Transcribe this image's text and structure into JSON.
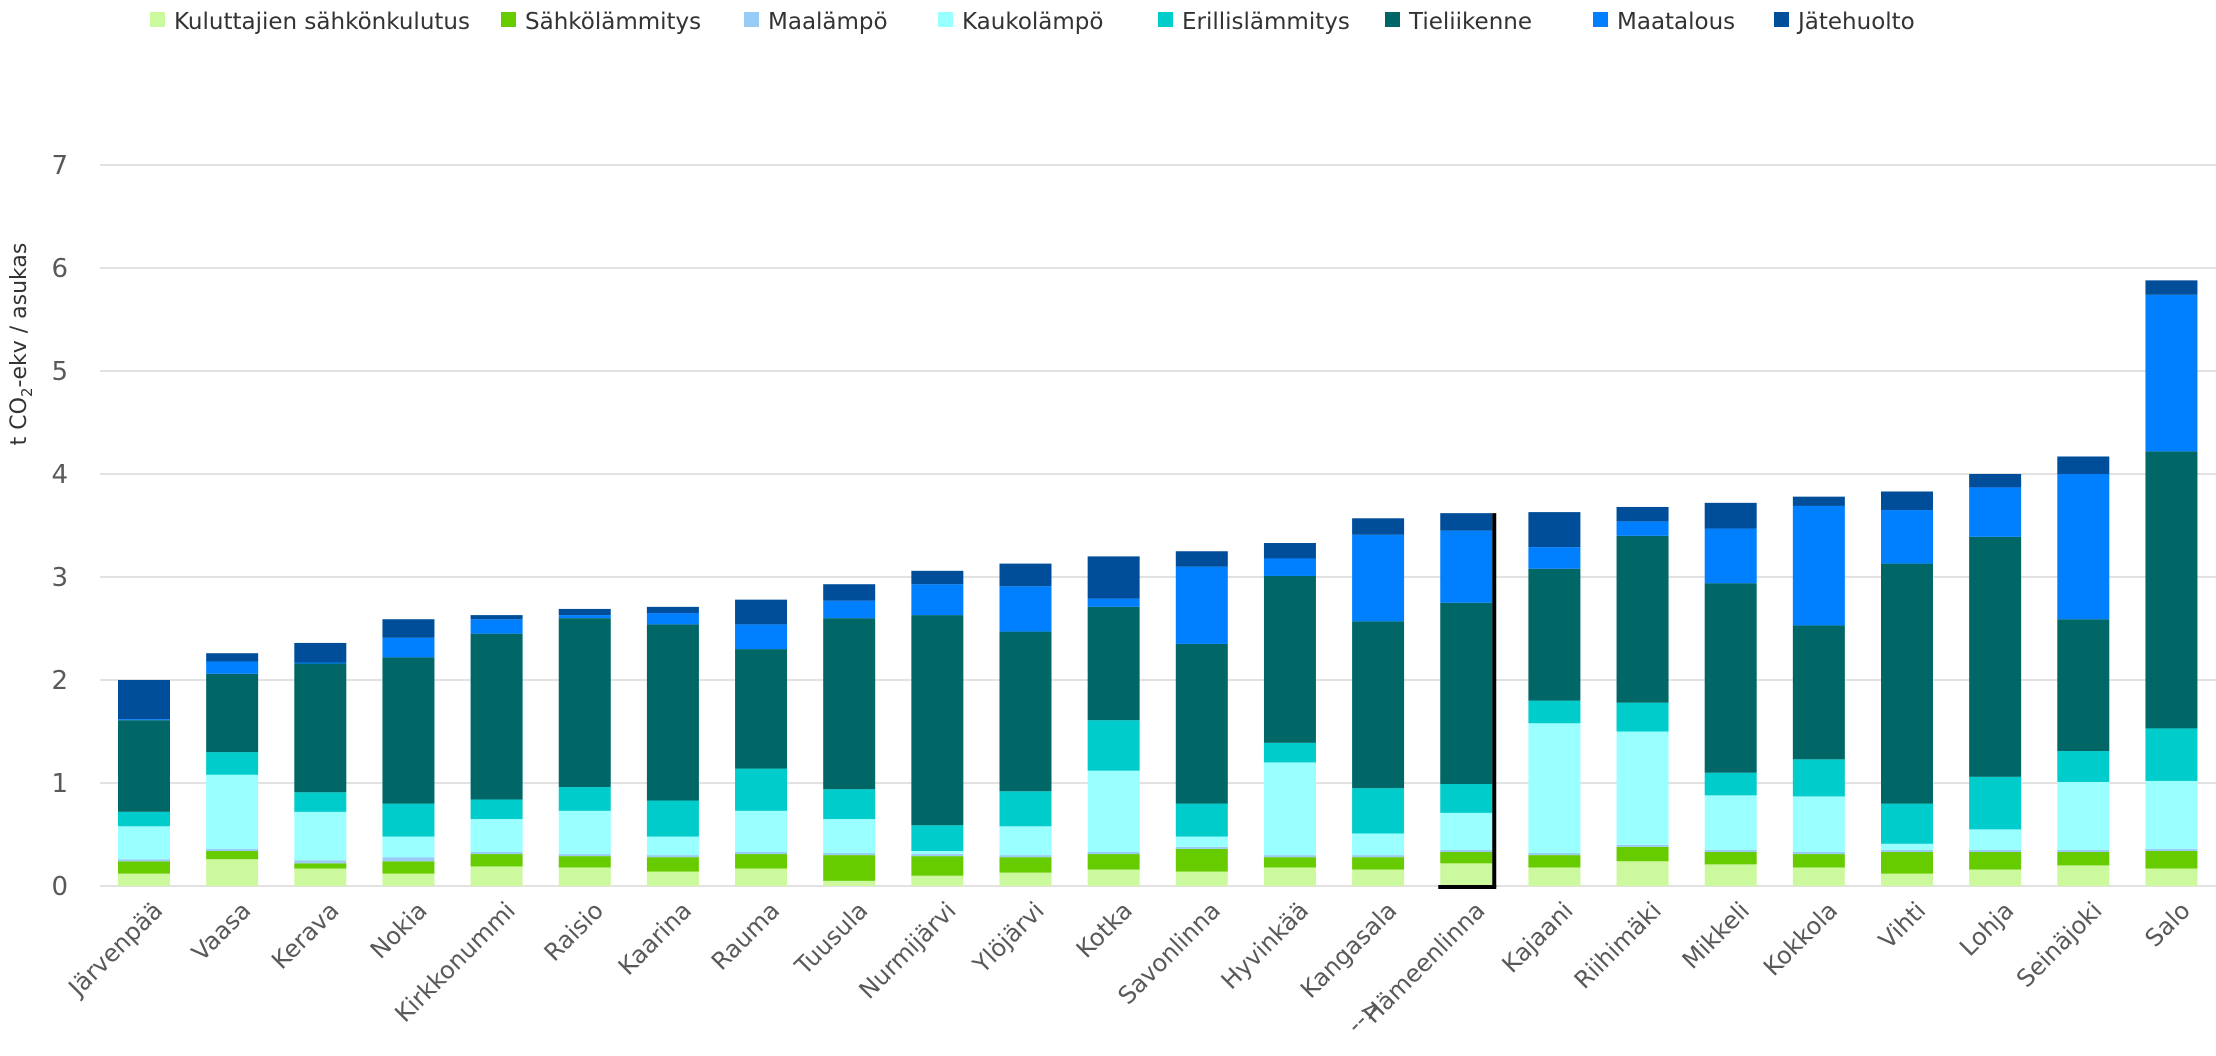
{
  "colors": {
    "grid": "#d9d9d9",
    "axis_text": "#595959",
    "highlight": "#000000"
  },
  "chart_data": {
    "type": "stacked-bar",
    "ylabel_parts": {
      "prefix": "t CO",
      "sub": "2",
      "suffix": "-ekv / asukas"
    },
    "ylim": [
      0,
      7
    ],
    "yticks": [
      0,
      1,
      2,
      3,
      4,
      5,
      6,
      7
    ],
    "grid": true,
    "legend_position": "top",
    "highlight_marker": "-->",
    "highlight_index": 15,
    "categories": [
      "Järvenpää",
      "Vaasa",
      "Kerava",
      "Nokia",
      "Kirkkonummi",
      "Raisio",
      "Kaarina",
      "Rauma",
      "Tuusula",
      "Nurmijärvi",
      "Ylöjärvi",
      "Kotka",
      "Savonlinna",
      "Hyvinkää",
      "Kangasala",
      "Hämeenlinna",
      "Kajaani",
      "Riihimäki",
      "Mikkeli",
      "Kokkola",
      "Vihti",
      "Lohja",
      "Seinäjoki",
      "Salo"
    ],
    "series": [
      {
        "name": "Kuluttajien sähkönkulutus",
        "color": "#ccf99d",
        "values": [
          0.12,
          0.26,
          0.17,
          0.12,
          0.19,
          0.18,
          0.14,
          0.17,
          0.05,
          0.1,
          0.13,
          0.16,
          0.14,
          0.18,
          0.16,
          0.22,
          0.18,
          0.24,
          0.21,
          0.18,
          0.12,
          0.16,
          0.2,
          0.17
        ]
      },
      {
        "name": "Sähkölämmitys",
        "color": "#66cc00",
        "values": [
          0.12,
          0.08,
          0.05,
          0.12,
          0.12,
          0.11,
          0.14,
          0.14,
          0.25,
          0.19,
          0.15,
          0.15,
          0.22,
          0.1,
          0.12,
          0.11,
          0.12,
          0.14,
          0.12,
          0.13,
          0.21,
          0.17,
          0.13,
          0.17
        ]
      },
      {
        "name": "Maalämpö",
        "color": "#99ccf5",
        "values": [
          0.02,
          0.02,
          0.03,
          0.04,
          0.02,
          0.02,
          0.02,
          0.02,
          0.02,
          0.02,
          0.02,
          0.02,
          0.02,
          0.02,
          0.02,
          0.02,
          0.02,
          0.02,
          0.02,
          0.02,
          0.02,
          0.02,
          0.02,
          0.02
        ]
      },
      {
        "name": "Kaukolämpö",
        "color": "#99ffff",
        "values": [
          0.32,
          0.72,
          0.47,
          0.2,
          0.32,
          0.42,
          0.18,
          0.4,
          0.33,
          0.03,
          0.28,
          0.79,
          0.1,
          0.9,
          0.21,
          0.36,
          1.26,
          1.1,
          0.53,
          0.54,
          0.06,
          0.2,
          0.66,
          0.66
        ]
      },
      {
        "name": "Erillislämmitys",
        "color": "#00cccc",
        "values": [
          0.14,
          0.22,
          0.19,
          0.32,
          0.19,
          0.23,
          0.35,
          0.41,
          0.29,
          0.25,
          0.34,
          0.49,
          0.32,
          0.19,
          0.44,
          0.28,
          0.22,
          0.28,
          0.22,
          0.36,
          0.39,
          0.51,
          0.3,
          0.51
        ]
      },
      {
        "name": "Tieliikenne",
        "color": "#006666",
        "values": [
          0.89,
          0.76,
          1.25,
          1.42,
          1.61,
          1.64,
          1.71,
          1.16,
          1.66,
          2.04,
          1.55,
          1.1,
          1.55,
          1.62,
          1.62,
          1.76,
          1.28,
          1.62,
          1.84,
          1.3,
          2.33,
          2.33,
          1.28,
          2.69
        ]
      },
      {
        "name": "Maatalous",
        "color": "#0080ff",
        "values": [
          0.01,
          0.12,
          0.01,
          0.19,
          0.14,
          0.03,
          0.11,
          0.24,
          0.17,
          0.3,
          0.44,
          0.08,
          0.75,
          0.17,
          0.84,
          0.7,
          0.21,
          0.14,
          0.53,
          1.16,
          0.52,
          0.48,
          1.41,
          1.52
        ]
      },
      {
        "name": "Jätehuolto",
        "color": "#004d99",
        "values": [
          0.38,
          0.08,
          0.19,
          0.18,
          0.04,
          0.06,
          0.06,
          0.24,
          0.16,
          0.13,
          0.22,
          0.41,
          0.15,
          0.15,
          0.16,
          0.17,
          0.34,
          0.14,
          0.25,
          0.09,
          0.18,
          0.13,
          0.17,
          0.14
        ]
      }
    ]
  }
}
